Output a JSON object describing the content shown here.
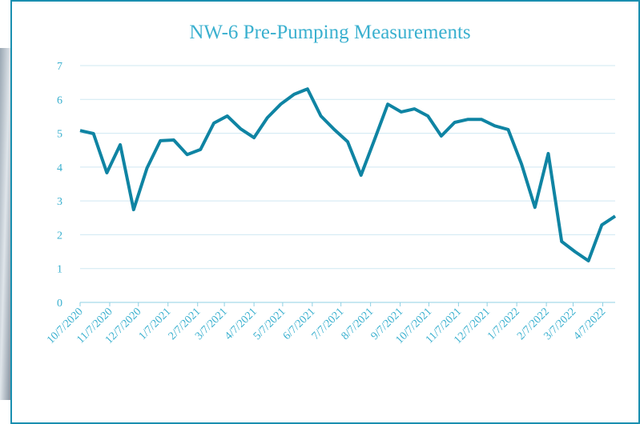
{
  "chart_data": {
    "type": "line",
    "title": "NW-6 Pre-Pumping Measurements",
    "x": [
      "10/7/2020",
      "10/21/2020",
      "11/4/2020",
      "11/18/2020",
      "12/2/2020",
      "12/16/2020",
      "12/30/2020",
      "1/13/2021",
      "1/27/2021",
      "2/10/2021",
      "2/24/2021",
      "3/10/2021",
      "3/24/2021",
      "4/7/2021",
      "4/21/2021",
      "5/5/2021",
      "5/19/2021",
      "6/2/2021",
      "6/16/2021",
      "6/30/2021",
      "7/14/2021",
      "7/28/2021",
      "8/11/2021",
      "8/25/2021",
      "9/8/2021",
      "9/22/2021",
      "10/6/2021",
      "10/20/2021",
      "11/3/2021",
      "11/17/2021",
      "12/1/2021",
      "12/15/2021",
      "12/29/2021",
      "1/12/2022",
      "1/26/2022",
      "2/9/2022",
      "2/23/2022",
      "3/9/2022",
      "3/23/2022",
      "4/6/2022",
      "4/20/2022"
    ],
    "series": [
      {
        "color": "#0f84a3",
        "values": [
          5.08,
          4.99,
          3.83,
          4.66,
          2.74,
          3.97,
          4.78,
          4.8,
          4.37,
          4.52,
          5.3,
          5.51,
          5.13,
          4.87,
          5.46,
          5.86,
          6.15,
          6.31,
          5.51,
          5.11,
          4.75,
          3.76,
          4.8,
          5.86,
          5.63,
          5.72,
          5.51,
          4.92,
          5.32,
          5.41,
          5.41,
          5.22,
          5.11,
          4.09,
          2.81,
          4.4,
          1.8,
          1.5,
          1.23,
          2.29,
          2.55
        ]
      }
    ],
    "xlim": [
      "10/7/2020",
      "4/20/2022"
    ],
    "xticks": [
      "10/7/2020",
      "11/7/2020",
      "12/7/2020",
      "1/7/2021",
      "2/7/2021",
      "3/7/2021",
      "4/7/2021",
      "5/7/2021",
      "6/7/2021",
      "7/7/2021",
      "8/7/2021",
      "9/7/2021",
      "10/7/2021",
      "11/7/2021",
      "12/7/2021",
      "1/7/2022",
      "2/7/2022",
      "3/7/2022",
      "4/7/2022"
    ],
    "ylim": [
      0,
      7
    ],
    "yticks": [
      0,
      1,
      2,
      3,
      4,
      5,
      6,
      7
    ],
    "grid": true
  }
}
